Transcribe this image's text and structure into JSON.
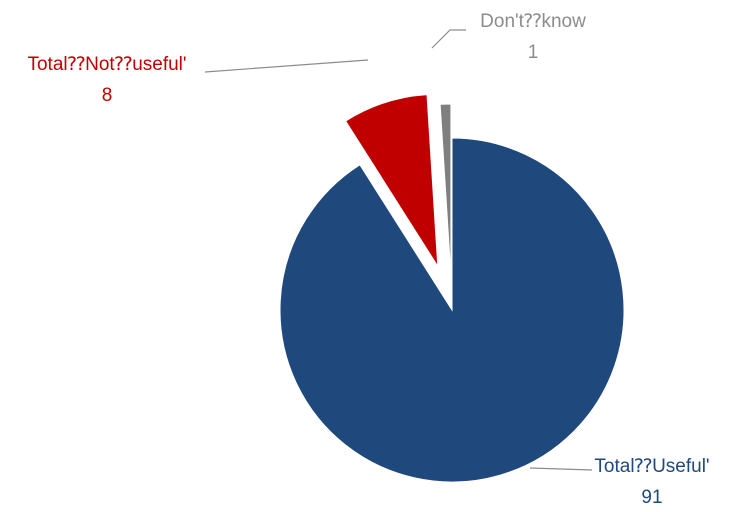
{
  "chart_data": {
    "type": "pie",
    "exploded": true,
    "slices": [
      {
        "name": "Total⁇Useful'",
        "value": 91,
        "value_label": "91",
        "color": "#1F497D"
      },
      {
        "name": "Total⁇Not⁇useful'",
        "value": 8,
        "value_label": "8",
        "color": "#C00000"
      },
      {
        "name": "Don't⁇know",
        "value": 1,
        "value_label": "1",
        "color": "#7F7F7F"
      }
    ],
    "label_colors": [
      "#1F497D",
      "#C00000",
      "#8C8C8C"
    ],
    "leader_line_color": "#8C8C8C"
  }
}
